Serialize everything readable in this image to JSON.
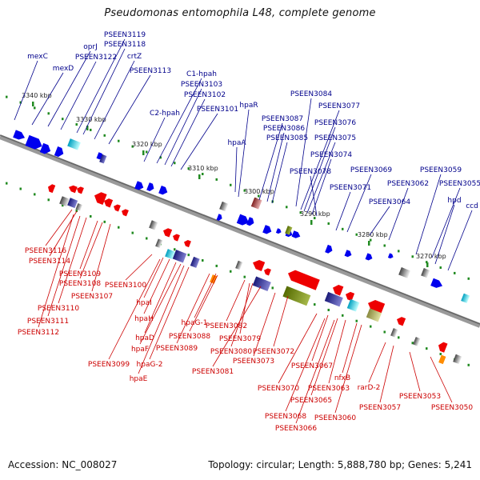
{
  "title": "Pseudomonas entomophila L48, complete genome",
  "footer": {
    "accession": "Accession: NC_008027",
    "summary": "Topology: circular; Length: 5,888,780 bp; Genes: 5,241"
  },
  "colors": {
    "backbone": "#7f7f7f",
    "forward_gene": "#0000ee",
    "reverse_gene": "#ee0000",
    "forward_label": "#00008b",
    "reverse_label": "#cc0000",
    "tick": "#228b22"
  },
  "scale": {
    "unit": "kbp",
    "ticks": [
      "3340 kbp",
      "3330 kbp",
      "3320 kbp",
      "3310 kbp",
      "3300 kbp",
      "3290 kbp",
      "3280 kbp",
      "3270 kbp"
    ]
  },
  "forward_genes": [
    "mexC",
    "mexD",
    "oprJ",
    "PSEEN3122",
    "PSEEN3119",
    "PSEEN3118",
    "crtZ",
    "PSEEN3113",
    "C2-hpah",
    "C1-hpah",
    "PSEEN3103",
    "PSEEN3102",
    "PSEEN3101",
    "hpaA",
    "hpaR",
    "PSEEN3087",
    "PSEEN3086",
    "PSEEN3085",
    "PSEEN3084",
    "PSEEN3077",
    "PSEEN3076",
    "PSEEN3075",
    "PSEEN3074",
    "PSEEN3078",
    "PSEEN3069",
    "PSEEN3071",
    "PSEEN3062",
    "PSEEN3064",
    "PSEEN3059",
    "PSEEN3055",
    "hpd",
    "ccd"
  ],
  "reverse_genes": [
    "PSEEN3116",
    "PSEEN3114",
    "PSEEN3109",
    "PSEEN3108",
    "PSEEN3107",
    "PSEEN3110",
    "PSEEN3111",
    "PSEEN3112",
    "PSEEN3100",
    "hpaI",
    "hpaH",
    "hpaD",
    "hpaF",
    "PSEEN3099",
    "hpaG-2",
    "hpaE",
    "hpaG-1",
    "PSEEN3088",
    "PSEEN3089",
    "PSEEN3082",
    "PSEEN3079",
    "PSEEN3080",
    "PSEEN3081",
    "PSEEN3073",
    "PSEEN3072",
    "PSEEN3067",
    "PSEEN3070",
    "PSEEN3065",
    "PSEEN3063",
    "nfxB",
    "PSEEN3068",
    "PSEEN3066",
    "PSEEN3060",
    "rarD-2",
    "PSEEN3057",
    "PSEEN3053",
    "PSEEN3050"
  ]
}
